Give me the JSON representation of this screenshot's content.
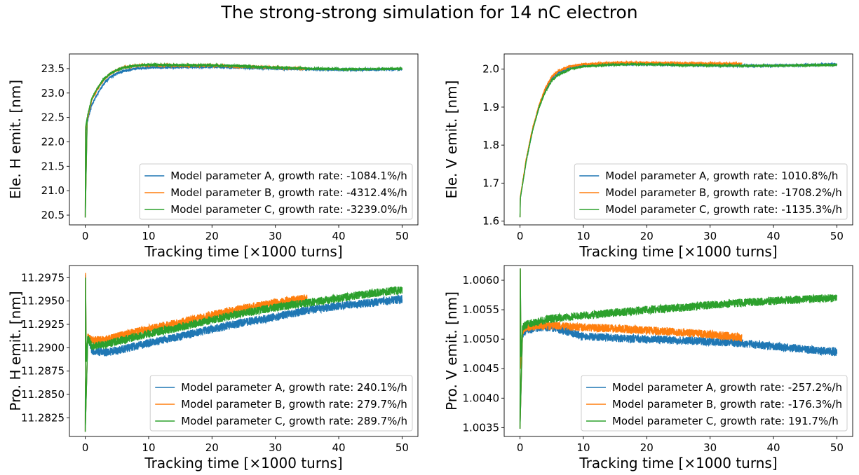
{
  "title": "The strong-strong simulation for 14 nC electron",
  "colors": {
    "A": "#1f77b4",
    "B": "#ff7f0e",
    "C": "#2ca02c"
  },
  "chart_data": [
    {
      "type": "line",
      "xlabel": "Tracking time [×1000 turns]",
      "ylabel": "Ele. H emit. [nm]",
      "xlim": [
        -2.5,
        52.5
      ],
      "ylim": [
        20.3,
        23.8
      ],
      "xticks": [
        0,
        10,
        20,
        30,
        40,
        50
      ],
      "yticks": [
        20.5,
        21.0,
        21.5,
        22.0,
        22.5,
        23.0,
        23.5
      ],
      "ytick_decimals": 1,
      "legend": "lower-right",
      "series": [
        {
          "name": "Model parameter A, growth rate: -1084.1%/h",
          "color": "#1f77b4",
          "x": [
            0,
            0.05,
            0.3,
            1,
            2,
            3,
            4,
            5,
            6,
            8,
            10,
            15,
            20,
            25,
            30,
            35,
            40,
            45,
            50
          ],
          "y": [
            20.45,
            22.2,
            22.4,
            22.75,
            23.0,
            23.2,
            23.33,
            23.4,
            23.45,
            23.5,
            23.52,
            23.53,
            23.54,
            23.52,
            23.5,
            23.49,
            23.48,
            23.48,
            23.49
          ],
          "noise": 0.025
        },
        {
          "name": "Model parameter B, growth rate: -4312.4%/h",
          "color": "#ff7f0e",
          "x": [
            0,
            0.05,
            0.3,
            1,
            2,
            3,
            4,
            5,
            6,
            8,
            10,
            15,
            20,
            25,
            30,
            35
          ],
          "y": [
            20.45,
            22.25,
            22.45,
            22.85,
            23.1,
            23.28,
            23.4,
            23.47,
            23.52,
            23.56,
            23.57,
            23.56,
            23.56,
            23.54,
            23.52,
            23.5
          ],
          "noise": 0.025
        },
        {
          "name": "Model parameter C, growth rate: -3239.0%/h",
          "color": "#2ca02c",
          "x": [
            0,
            0.05,
            0.3,
            1,
            2,
            3,
            4,
            5,
            6,
            8,
            10,
            15,
            20,
            25,
            30,
            35,
            40,
            45,
            50
          ],
          "y": [
            20.45,
            22.3,
            22.5,
            22.88,
            23.12,
            23.3,
            23.4,
            23.47,
            23.52,
            23.56,
            23.58,
            23.57,
            23.57,
            23.55,
            23.52,
            23.5,
            23.49,
            23.49,
            23.5
          ],
          "noise": 0.025
        }
      ]
    },
    {
      "type": "line",
      "xlabel": "Tracking time [×1000 turns]",
      "ylabel": "Ele. V emit. [nm]",
      "xlim": [
        -2.5,
        52.5
      ],
      "ylim": [
        1.59,
        2.04
      ],
      "xticks": [
        0,
        10,
        20,
        30,
        40,
        50
      ],
      "yticks": [
        1.6,
        1.7,
        1.8,
        1.9,
        2.0
      ],
      "ytick_decimals": 1,
      "legend": "lower-right",
      "series": [
        {
          "name": "Model parameter A, growth rate: 1010.8%/h",
          "color": "#1f77b4",
          "x": [
            0,
            0.05,
            1,
            2,
            3,
            4,
            5,
            6,
            8,
            10,
            15,
            20,
            25,
            30,
            35,
            40,
            45,
            50
          ],
          "y": [
            1.61,
            1.66,
            1.76,
            1.84,
            1.9,
            1.945,
            1.975,
            1.99,
            2.005,
            2.01,
            2.013,
            2.013,
            2.012,
            2.01,
            2.009,
            2.009,
            2.011,
            2.013
          ],
          "noise": 0.003
        },
        {
          "name": "Model parameter B, growth rate: -1708.2%/h",
          "color": "#ff7f0e",
          "x": [
            0,
            0.05,
            1,
            2,
            3,
            4,
            5,
            6,
            8,
            10,
            15,
            20,
            25,
            30,
            35
          ],
          "y": [
            1.61,
            1.665,
            1.765,
            1.845,
            1.905,
            1.95,
            1.98,
            1.995,
            2.008,
            2.013,
            2.017,
            2.017,
            2.016,
            2.015,
            2.014
          ],
          "noise": 0.003
        },
        {
          "name": "Model parameter C, growth rate: -1135.3%/h",
          "color": "#2ca02c",
          "x": [
            0,
            0.05,
            1,
            2,
            3,
            4,
            5,
            6,
            8,
            10,
            15,
            20,
            25,
            30,
            35,
            40,
            45,
            50
          ],
          "y": [
            1.61,
            1.66,
            1.76,
            1.84,
            1.9,
            1.94,
            1.97,
            1.985,
            2.0,
            2.007,
            2.012,
            2.013,
            2.011,
            2.01,
            2.009,
            2.009,
            2.01,
            2.011
          ],
          "noise": 0.003
        }
      ]
    },
    {
      "type": "line",
      "xlabel": "Tracking time [×1000 turns]",
      "ylabel": "Pro. H emit. [nm]",
      "xlim": [
        -2.5,
        52.5
      ],
      "ylim": [
        11.2805,
        11.2988
      ],
      "xticks": [
        0,
        10,
        20,
        30,
        40,
        50
      ],
      "yticks": [
        11.2825,
        11.285,
        11.2875,
        11.29,
        11.2925,
        11.295,
        11.2975
      ],
      "ytick_decimals": 4,
      "legend": "lower-right",
      "series": [
        {
          "name": "Model parameter A, growth rate: 240.1%/h",
          "color": "#1f77b4",
          "x": [
            0,
            0.05,
            0.15,
            0.4,
            1,
            3,
            5,
            10,
            15,
            20,
            25,
            30,
            35,
            40,
            45,
            50
          ],
          "y": [
            11.281,
            11.2978,
            11.2885,
            11.291,
            11.2897,
            11.2895,
            11.2897,
            11.2905,
            11.2912,
            11.292,
            11.2927,
            11.2933,
            11.294,
            11.2945,
            11.2948,
            11.2952
          ],
          "noise": 0.00045
        },
        {
          "name": "Model parameter B, growth rate: 279.7%/h",
          "color": "#ff7f0e",
          "x": [
            0,
            0.05,
            0.15,
            0.4,
            1,
            3,
            5,
            10,
            15,
            20,
            25,
            30,
            35
          ],
          "y": [
            11.281,
            11.298,
            11.2885,
            11.2912,
            11.2908,
            11.2908,
            11.2912,
            11.292,
            11.2927,
            11.2935,
            11.2942,
            11.2948,
            11.2953
          ],
          "noise": 0.00045
        },
        {
          "name": "Model parameter C, growth rate: 289.7%/h",
          "color": "#2ca02c",
          "x": [
            0,
            0.05,
            0.15,
            0.4,
            1,
            3,
            5,
            10,
            15,
            20,
            25,
            30,
            35,
            40,
            45,
            50
          ],
          "y": [
            11.281,
            11.2975,
            11.2885,
            11.291,
            11.2902,
            11.2903,
            11.2907,
            11.2915,
            11.2922,
            11.293,
            11.2937,
            11.2943,
            11.2948,
            11.2953,
            11.2958,
            11.2962
          ],
          "noise": 0.00045
        }
      ]
    },
    {
      "type": "line",
      "xlabel": "Tracking time [×1000 turns]",
      "ylabel": "Pro. V emit. [nm]",
      "xlim": [
        -2.5,
        52.5
      ],
      "ylim": [
        1.00335,
        1.00625
      ],
      "xticks": [
        0,
        10,
        20,
        30,
        40,
        50
      ],
      "yticks": [
        1.0035,
        1.004,
        1.0045,
        1.005,
        1.0055,
        1.006
      ],
      "ytick_decimals": 4,
      "legend": "lower-right",
      "series": [
        {
          "name": "Model parameter A, growth rate: -257.2%/h",
          "color": "#1f77b4",
          "x": [
            0,
            0.05,
            0.15,
            0.4,
            1,
            3,
            5,
            10,
            15,
            20,
            25,
            30,
            35,
            40,
            45,
            50
          ],
          "y": [
            1.00348,
            1.0062,
            1.0045,
            1.0051,
            1.00515,
            1.0052,
            1.0052,
            1.00505,
            1.00502,
            1.005,
            1.00498,
            1.00496,
            1.00493,
            1.00488,
            1.00483,
            1.00478
          ],
          "noise": 7e-05
        },
        {
          "name": "Model parameter B, growth rate: -176.3%/h",
          "color": "#ff7f0e",
          "x": [
            0,
            0.05,
            0.15,
            0.4,
            1,
            3,
            5,
            10,
            15,
            20,
            25,
            30,
            35
          ],
          "y": [
            1.00348,
            1.0062,
            1.0045,
            1.00512,
            1.0052,
            1.00523,
            1.00523,
            1.0052,
            1.00518,
            1.00515,
            1.00512,
            1.00508,
            1.00503
          ],
          "noise": 7e-05
        },
        {
          "name": "Model parameter C, growth rate: 191.7%/h",
          "color": "#2ca02c",
          "x": [
            0,
            0.05,
            0.15,
            0.4,
            1,
            3,
            5,
            10,
            15,
            20,
            25,
            30,
            35,
            40,
            45,
            50
          ],
          "y": [
            1.00348,
            1.0062,
            1.0047,
            1.0052,
            1.00525,
            1.0053,
            1.00535,
            1.0054,
            1.00545,
            1.0055,
            1.00553,
            1.00558,
            1.00562,
            1.00565,
            1.00568,
            1.0057
          ],
          "noise": 7e-05
        }
      ]
    }
  ]
}
